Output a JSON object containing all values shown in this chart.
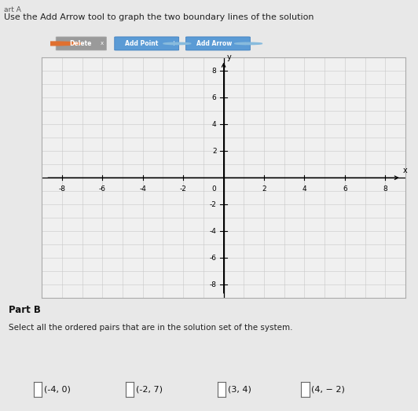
{
  "title_text": "Use the Add Arrow tool to graph the two boundary lines of the solution",
  "part_b_title": "Part B",
  "part_b_text": "Select all the ordered pairs that are in the solution set of the system.",
  "choices": [
    "(-4, 0)",
    "(-2, 7)",
    "(3, 4)",
    "(4, − 2)"
  ],
  "xlim": [
    -9,
    9
  ],
  "ylim": [
    -9,
    9
  ],
  "xticks": [
    -8,
    -6,
    -4,
    -2,
    2,
    4,
    6,
    8
  ],
  "yticks": [
    -8,
    -6,
    -4,
    -2,
    2,
    4,
    6,
    8
  ],
  "grid_color": "#c8c8c8",
  "axis_color": "#000000",
  "bg_color": "#e8e8e8",
  "plot_bg_color": "#e8e8e8",
  "plot_inner_color": "#f0f0f0",
  "toolbar_delete_color": "#8a8a8a",
  "toolbar_blue_color": "#5b9bd5",
  "tick_label_fontsize": 6.5,
  "title_fontsize": 8,
  "part_b_fontsize": 8,
  "choice_fontsize": 8
}
